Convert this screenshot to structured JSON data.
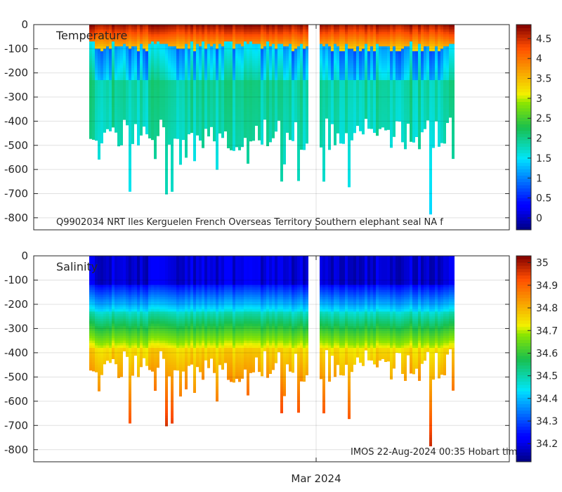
{
  "chart_data": [
    {
      "type": "heatmap",
      "title": "Temperature",
      "variable": "Temperature",
      "ylim": [
        -850,
        0
      ],
      "yticks": [
        0,
        -100,
        -200,
        -300,
        -400,
        -500,
        -600,
        -700,
        -800
      ],
      "ytick_labels": [
        "0",
        "-100",
        "-200",
        "-300",
        "-400",
        "-500",
        "-600",
        "-700",
        "-800"
      ],
      "x_tick_label": "",
      "colorbar": {
        "min": -0.3,
        "max": 4.85,
        "ticks": [
          0,
          0.5,
          1,
          1.5,
          2,
          2.5,
          3,
          3.5,
          4,
          4.5
        ],
        "tick_labels": [
          "0",
          "0.5",
          "1",
          "1.5",
          "2",
          "2.5",
          "3",
          "3.5",
          "4",
          "4.5"
        ]
      },
      "annotation": "Q9902034 NRT Iles Kerguelen French Overseas Territory Southern elephant seal NA f",
      "layers": [
        {
          "top": 0,
          "bottom": 110,
          "value": 3.7
        },
        {
          "top": 110,
          "bottom": 220,
          "value": 1.2
        },
        {
          "top": 220,
          "bottom": 850,
          "value": 1.9
        }
      ]
    },
    {
      "type": "heatmap",
      "title": "Salinity",
      "variable": "Salinity",
      "ylim": [
        -850,
        0
      ],
      "yticks": [
        0,
        -100,
        -200,
        -300,
        -400,
        -500,
        -600,
        -700,
        -800
      ],
      "ytick_labels": [
        "0",
        "-100",
        "-200",
        "-300",
        "-400",
        "-500",
        "-600",
        "-700",
        "-800"
      ],
      "x_tick_label": "Mar 2024",
      "colorbar": {
        "min": 34.12,
        "max": 35.03,
        "ticks": [
          34.2,
          34.3,
          34.4,
          34.5,
          34.6,
          34.7,
          34.8,
          34.9,
          35
        ],
        "tick_labels": [
          "34.2",
          "34.3",
          "34.4",
          "34.5",
          "34.6",
          "34.7",
          "34.8",
          "34.9",
          "35"
        ]
      },
      "annotation": "IMOS 22-Aug-2024 00:35 Hobart tim",
      "layers": [
        {
          "top": 0,
          "bottom": 100,
          "value": 34.2
        },
        {
          "top": 100,
          "bottom": 250,
          "value": 34.4
        },
        {
          "top": 250,
          "bottom": 400,
          "value": 34.65
        },
        {
          "top": 400,
          "bottom": 850,
          "value": 34.8
        }
      ]
    }
  ]
}
